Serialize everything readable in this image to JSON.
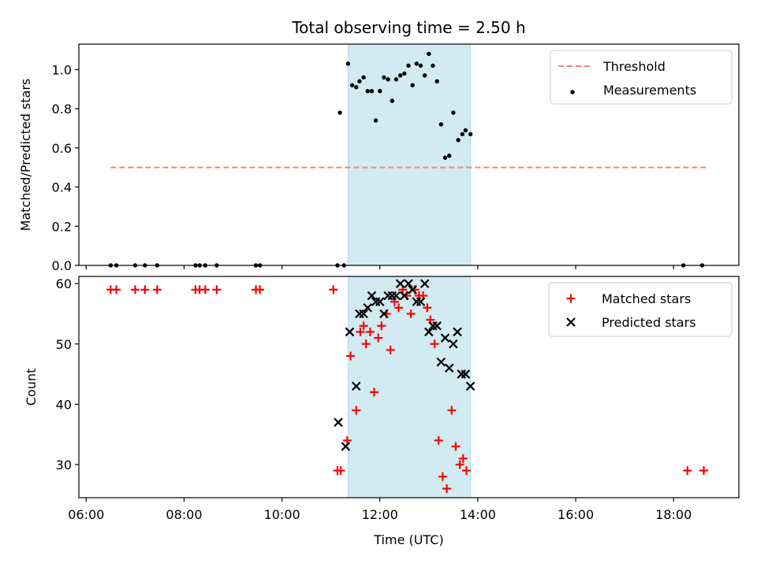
{
  "chart_data": [
    {
      "type": "scatter",
      "title": "Total observing time = 2.50 h",
      "xlabel": "",
      "ylabel": "Matched/Predicted stars",
      "xlim": [
        "05:51",
        "19:20"
      ],
      "ylim": [
        0,
        1.13
      ],
      "yticks": [
        0.0,
        0.2,
        0.4,
        0.6,
        0.8,
        1.0
      ],
      "ytick_labels": [
        "0.0",
        "0.2",
        "0.4",
        "0.6",
        "0.8",
        "1.0"
      ],
      "grid": false,
      "legend_position": "upper right",
      "shaded_region": {
        "x": [
          "11:21",
          "13:51"
        ],
        "color": "#add8e6"
      },
      "threshold": {
        "name": "Threshold",
        "value": 0.5,
        "x": [
          "06:30",
          "18:40"
        ],
        "color": "#ff7f7f",
        "style": "dashed"
      },
      "series": [
        {
          "name": "Measurements",
          "color": "#000000",
          "marker": "dot",
          "points": [
            [
              "06:30",
              0
            ],
            [
              "06:37",
              0
            ],
            [
              "07:00",
              0
            ],
            [
              "07:12",
              0
            ],
            [
              "07:27",
              0
            ],
            [
              "08:14",
              0
            ],
            [
              "08:19",
              0
            ],
            [
              "08:26",
              0
            ],
            [
              "08:40",
              0
            ],
            [
              "09:28",
              0
            ],
            [
              "09:33",
              0
            ],
            [
              "11:08",
              0
            ],
            [
              "11:16",
              0
            ],
            [
              "11:11",
              0.78
            ],
            [
              "11:21",
              1.03
            ],
            [
              "11:26",
              0.92
            ],
            [
              "11:31",
              0.91
            ],
            [
              "11:35",
              0.94
            ],
            [
              "11:40",
              0.96
            ],
            [
              "11:45",
              0.89
            ],
            [
              "11:50",
              0.89
            ],
            [
              "11:55",
              0.74
            ],
            [
              "12:00",
              0.89
            ],
            [
              "12:05",
              0.96
            ],
            [
              "12:10",
              0.95
            ],
            [
              "12:15",
              0.84
            ],
            [
              "12:20",
              0.95
            ],
            [
              "12:25",
              0.97
            ],
            [
              "12:30",
              0.98
            ],
            [
              "12:35",
              1.02
            ],
            [
              "12:40",
              0.92
            ],
            [
              "12:45",
              1.03
            ],
            [
              "12:50",
              1.02
            ],
            [
              "12:55",
              0.97
            ],
            [
              "13:00",
              1.08
            ],
            [
              "13:05",
              1.02
            ],
            [
              "13:10",
              0.94
            ],
            [
              "13:15",
              0.72
            ],
            [
              "13:20",
              0.55
            ],
            [
              "13:25",
              0.56
            ],
            [
              "13:30",
              0.78
            ],
            [
              "13:36",
              0.64
            ],
            [
              "13:41",
              0.67
            ],
            [
              "13:45",
              0.69
            ],
            [
              "13:51",
              0.67
            ],
            [
              "18:12",
              0
            ],
            [
              "18:35",
              0
            ]
          ]
        }
      ]
    },
    {
      "type": "scatter",
      "title": "",
      "xlabel": "Time (UTC)",
      "ylabel": "Count",
      "xlim": [
        "05:51",
        "19:20"
      ],
      "ylim": [
        24.5,
        61.2
      ],
      "yticks": [
        30,
        40,
        50,
        60
      ],
      "ytick_labels": [
        "30",
        "40",
        "50",
        "60"
      ],
      "xticks": [
        "06:00",
        "08:00",
        "10:00",
        "12:00",
        "14:00",
        "16:00",
        "18:00"
      ],
      "grid": false,
      "legend_position": "upper right",
      "shaded_region": {
        "x": [
          "11:21",
          "13:51"
        ],
        "color": "#add8e6"
      },
      "series": [
        {
          "name": "Matched stars",
          "color": "#ff0000",
          "marker": "plus",
          "points": [
            [
              "06:30",
              59
            ],
            [
              "06:37",
              59
            ],
            [
              "07:00",
              59
            ],
            [
              "07:12",
              59
            ],
            [
              "07:27",
              59
            ],
            [
              "08:14",
              59
            ],
            [
              "08:19",
              59
            ],
            [
              "08:26",
              59
            ],
            [
              "08:40",
              59
            ],
            [
              "09:28",
              59
            ],
            [
              "09:33",
              59
            ],
            [
              "11:03",
              59
            ],
            [
              "11:08",
              29
            ],
            [
              "11:12",
              29
            ],
            [
              "11:20",
              34
            ],
            [
              "11:24",
              48
            ],
            [
              "11:31",
              39
            ],
            [
              "11:36",
              52
            ],
            [
              "11:40",
              53
            ],
            [
              "11:43",
              50
            ],
            [
              "11:48",
              52
            ],
            [
              "11:53",
              42
            ],
            [
              "11:58",
              51
            ],
            [
              "12:02",
              53
            ],
            [
              "12:08",
              55
            ],
            [
              "12:13",
              49
            ],
            [
              "12:18",
              57
            ],
            [
              "12:23",
              56
            ],
            [
              "12:28",
              59
            ],
            [
              "12:33",
              58
            ],
            [
              "12:38",
              55
            ],
            [
              "12:43",
              59
            ],
            [
              "12:48",
              58
            ],
            [
              "12:53",
              58
            ],
            [
              "12:58",
              56
            ],
            [
              "13:02",
              54
            ],
            [
              "13:07",
              50
            ],
            [
              "13:12",
              34
            ],
            [
              "13:17",
              28
            ],
            [
              "13:22",
              26
            ],
            [
              "13:28",
              39
            ],
            [
              "13:33",
              33
            ],
            [
              "13:38",
              30
            ],
            [
              "13:42",
              31
            ],
            [
              "13:46",
              29
            ],
            [
              "18:17",
              29
            ],
            [
              "18:37",
              29
            ]
          ]
        },
        {
          "name": "Predicted stars",
          "color": "#000000",
          "marker": "x",
          "points": [
            [
              "11:09",
              37
            ],
            [
              "11:18",
              33
            ],
            [
              "11:23",
              52
            ],
            [
              "11:31",
              43
            ],
            [
              "11:35",
              55
            ],
            [
              "11:40",
              55
            ],
            [
              "11:45",
              56
            ],
            [
              "11:50",
              58
            ],
            [
              "11:55",
              57
            ],
            [
              "12:00",
              57
            ],
            [
              "12:05",
              55
            ],
            [
              "12:10",
              58
            ],
            [
              "12:15",
              58
            ],
            [
              "12:20",
              58
            ],
            [
              "12:25",
              60
            ],
            [
              "12:30",
              58
            ],
            [
              "12:35",
              60
            ],
            [
              "12:40",
              59
            ],
            [
              "12:45",
              57
            ],
            [
              "12:50",
              57
            ],
            [
              "12:55",
              60
            ],
            [
              "13:00",
              52
            ],
            [
              "13:05",
              53
            ],
            [
              "13:10",
              53
            ],
            [
              "13:15",
              47
            ],
            [
              "13:20",
              51
            ],
            [
              "13:25",
              46
            ],
            [
              "13:30",
              50
            ],
            [
              "13:35",
              52
            ],
            [
              "13:40",
              45
            ],
            [
              "13:45",
              45
            ],
            [
              "13:51",
              43
            ]
          ]
        }
      ]
    }
  ]
}
